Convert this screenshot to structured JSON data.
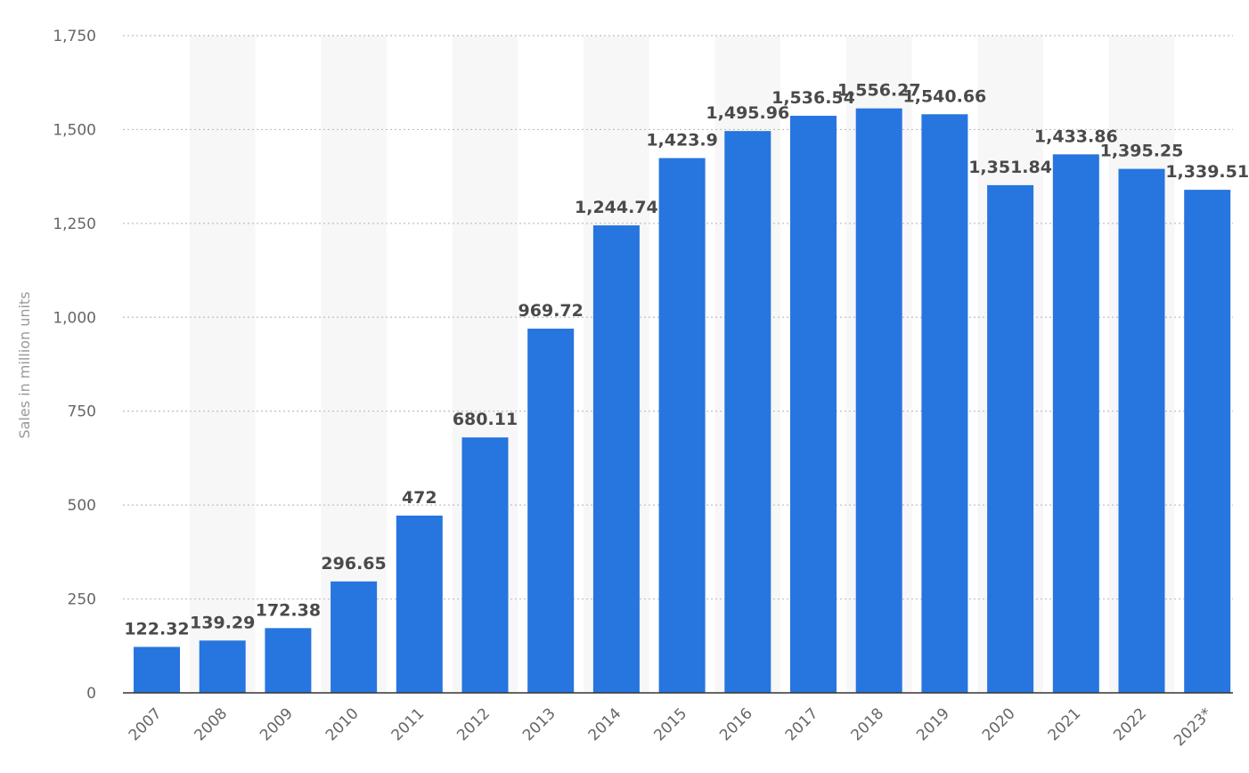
{
  "chart_data": {
    "type": "bar",
    "title": "",
    "xlabel": "",
    "ylabel": "Sales in million units",
    "categories": [
      "2007",
      "2008",
      "2009",
      "2010",
      "2011",
      "2012",
      "2013",
      "2014",
      "2015",
      "2016",
      "2017",
      "2018",
      "2019",
      "2020",
      "2021",
      "2022",
      "2023*"
    ],
    "values": [
      122.32,
      139.29,
      172.38,
      296.65,
      472,
      680.11,
      969.72,
      1244.74,
      1423.9,
      1495.96,
      1536.54,
      1556.27,
      1540.66,
      1351.84,
      1433.86,
      1395.25,
      1339.51
    ],
    "value_labels": [
      "122.32",
      "139.29",
      "172.38",
      "296.65",
      "472",
      "680.11",
      "969.72",
      "1,244.74",
      "1,423.9",
      "1,495.96",
      "1,536.54",
      "1,556.27",
      "1,540.66",
      "1,351.84",
      "1,433.86",
      "1,395.25",
      "1,339.51"
    ],
    "ylim": [
      0,
      1750
    ],
    "yticks": [
      0,
      250,
      500,
      750,
      1000,
      1250,
      1500,
      1750
    ],
    "ytick_labels": [
      "0",
      "250",
      "500",
      "750",
      "1,000",
      "1,250",
      "1,500",
      "1,750"
    ],
    "grid": true,
    "colors": {
      "bar": "#2775de",
      "band": "#f7f7f7",
      "grid": "#bfbfbf"
    }
  }
}
